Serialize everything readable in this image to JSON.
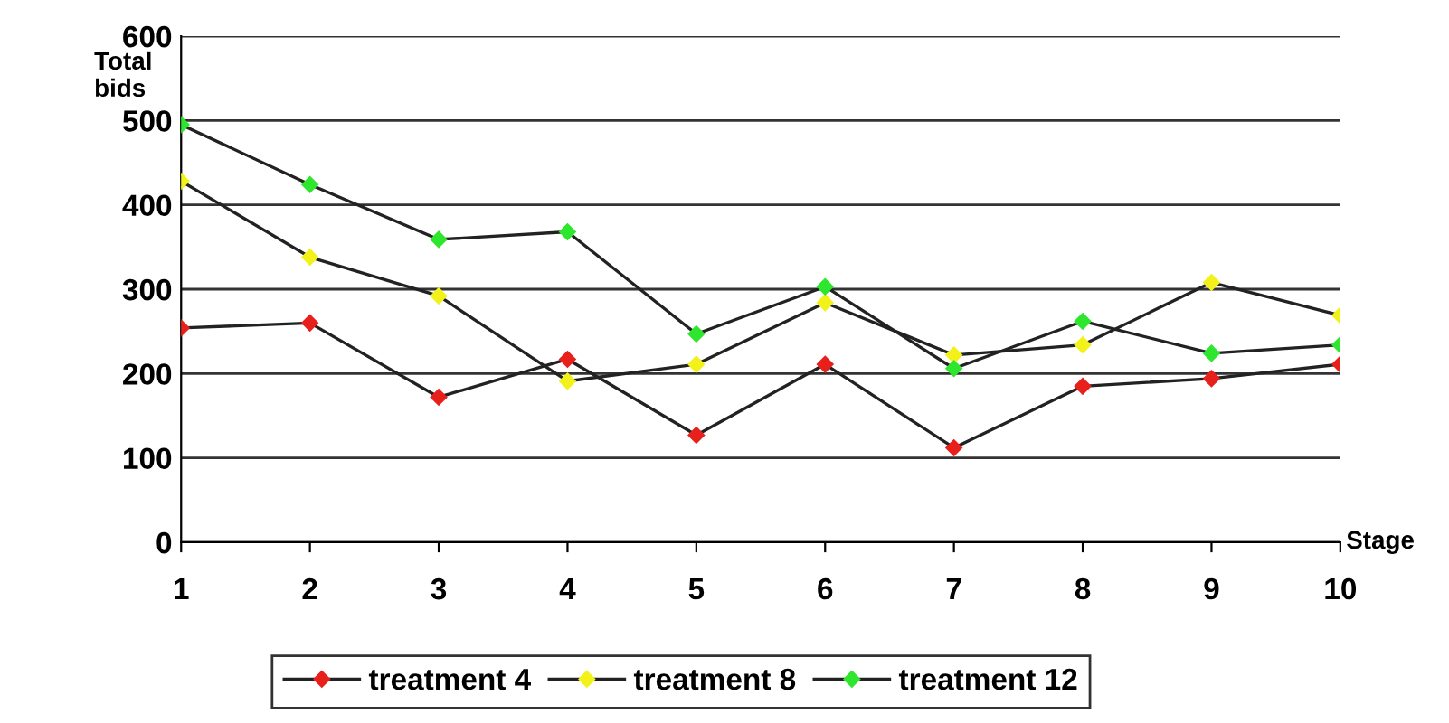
{
  "chart_data": {
    "type": "line",
    "xlabel": "Stage",
    "ylabel": "Total\nbids",
    "categories": [
      "1",
      "2",
      "3",
      "4",
      "5",
      "6",
      "7",
      "8",
      "9",
      "10"
    ],
    "series": [
      {
        "name": "treatment 4",
        "color": "#e8201c",
        "values": [
          254,
          260,
          172,
          217,
          127,
          211,
          112,
          185,
          194,
          211
        ]
      },
      {
        "name": "treatment 8",
        "color": "#f2f21a",
        "values": [
          428,
          338,
          292,
          191,
          211,
          284,
          222,
          234,
          308,
          269
        ]
      },
      {
        "name": "treatment 12",
        "color": "#2ee62e",
        "values": [
          495,
          424,
          359,
          368,
          247,
          303,
          206,
          262,
          224,
          234
        ]
      }
    ],
    "ylim": [
      0,
      600
    ],
    "yticks": [
      0,
      100,
      200,
      300,
      400,
      500,
      600
    ],
    "grid": "y",
    "legend": "bottom",
    "marker": "diamond",
    "line_style": "solid"
  }
}
